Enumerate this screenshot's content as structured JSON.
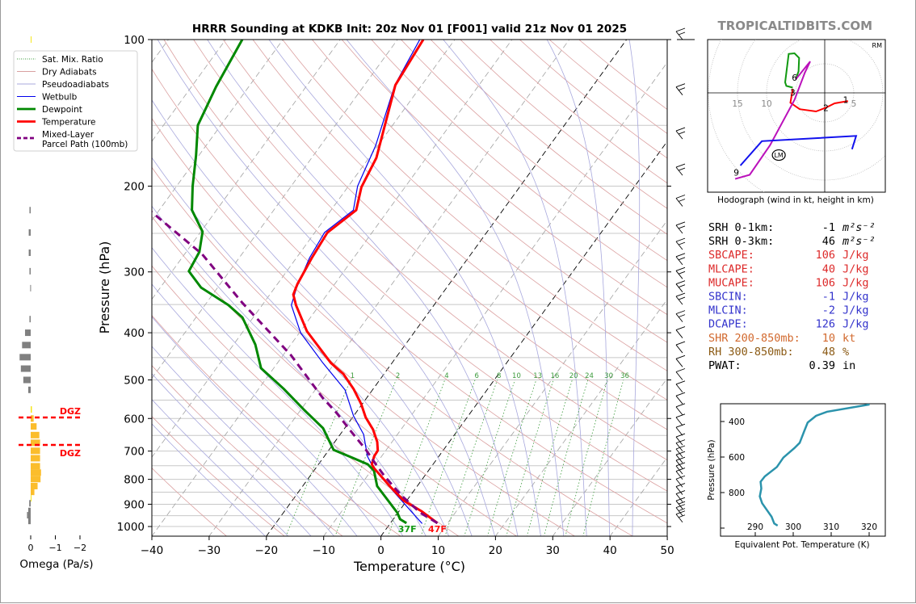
{
  "title": "HRRR Sounding at KDKB Init: 20z Nov 01 [F001] valid 21z Nov 01 2025",
  "watermark": "TROPICALTIDBITS.COM",
  "legend": [
    {
      "label": "Sat. Mix. Ratio",
      "color": "#3a9a3a",
      "style": "dotted"
    },
    {
      "label": "Dry Adiabats",
      "color": "#d9a0a0",
      "style": "solid"
    },
    {
      "label": "Pseudoadiabats",
      "color": "#a8a8dd",
      "style": "solid"
    },
    {
      "label": "Wetbulb",
      "color": "#0000ee",
      "style": "solid"
    },
    {
      "label": "Dewpoint",
      "color": "#008800",
      "style": "thick"
    },
    {
      "label": "Temperature",
      "color": "#ff0000",
      "style": "thick"
    },
    {
      "label": "Mixed-Layer",
      "label2": "Parcel Path (100mb)",
      "color": "#800080",
      "style": "dashed"
    }
  ],
  "stats": [
    {
      "label": "SRH 0-1km:",
      "value": "-1",
      "unit": "m²s⁻²",
      "color": "#000000"
    },
    {
      "label": "SRH 0-3km:",
      "value": "46",
      "unit": "m²s⁻²",
      "color": "#000000"
    },
    {
      "label": "SBCAPE:",
      "value": "106",
      "unit": "J/kg",
      "color": "#dd2a2a"
    },
    {
      "label": "MLCAPE:",
      "value": "40",
      "unit": "J/kg",
      "color": "#dd2a2a"
    },
    {
      "label": "MUCAPE:",
      "value": "106",
      "unit": "J/kg",
      "color": "#dd2a2a"
    },
    {
      "label": "SBCIN:",
      "value": "-1",
      "unit": "J/kg",
      "color": "#3333cc"
    },
    {
      "label": "MLCIN:",
      "value": "-2",
      "unit": "J/kg",
      "color": "#3333cc"
    },
    {
      "label": "DCAPE:",
      "value": "126",
      "unit": "J/kg",
      "color": "#3333cc"
    },
    {
      "label": "SHR 200-850mb:",
      "value": "10",
      "unit": "kt",
      "color": "#d2692e"
    },
    {
      "label": "RH 300-850mb:",
      "value": "48",
      "unit": "%",
      "color": "#8b5a14"
    },
    {
      "label": "PWAT:",
      "value": "0.39",
      "unit": "in",
      "color": "#000000"
    }
  ],
  "chart_data": [
    {
      "type": "line",
      "name": "skew-t",
      "xlabel": "Temperature (°C)",
      "ylabel": "Pressure (hPa)",
      "xlim": [
        -40,
        50
      ],
      "ylim": [
        1050,
        100
      ],
      "y_scale": "log",
      "grid": true,
      "legend_placement": "left",
      "x_ticks": [
        "−40",
        "−30",
        "−20",
        "−10",
        "0",
        "10",
        "20",
        "30",
        "40",
        "50"
      ],
      "x_tick_values": [
        -40,
        -30,
        -20,
        -10,
        0,
        10,
        20,
        30,
        40,
        50
      ],
      "y_ticks": [
        "100",
        "200",
        "300",
        "400",
        "500",
        "600",
        "700",
        "800",
        "900",
        "1000"
      ],
      "y_tick_values": [
        100,
        200,
        300,
        400,
        500,
        600,
        700,
        800,
        900,
        1000
      ],
      "mixing_ratio_labels": [
        "1",
        "2",
        "4",
        "6",
        "8",
        "10",
        "13",
        "16",
        "20",
        "24",
        "30",
        "36"
      ],
      "surface_temperature_label": "47F",
      "surface_dewpoint_label": "37F",
      "series": {
        "temperature": [
          [
            984,
            8.2
          ],
          [
            930,
            3.9
          ],
          [
            885,
            -0.5
          ],
          [
            829,
            -4.6
          ],
          [
            759,
            -9.8
          ],
          [
            745,
            -10.7
          ],
          [
            717,
            -11.3
          ],
          [
            698,
            -11.4
          ],
          [
            670,
            -12.6
          ],
          [
            632,
            -14.9
          ],
          [
            597,
            -17.7
          ],
          [
            560,
            -20.2
          ],
          [
            522,
            -23.4
          ],
          [
            486,
            -27.1
          ],
          [
            462,
            -30.6
          ],
          [
            397,
            -38.9
          ],
          [
            351,
            -44.1
          ],
          [
            334,
            -45.9
          ],
          [
            318,
            -46.5
          ],
          [
            281,
            -47.3
          ],
          [
            249,
            -47.8
          ],
          [
            224,
            -45.6
          ],
          [
            201,
            -47.6
          ],
          [
            175,
            -48.7
          ],
          [
            124,
            -54.6
          ],
          [
            100,
            -55.5
          ]
        ],
        "dewpoint": [
          [
            984,
            2.8
          ],
          [
            966,
            1.2
          ],
          [
            937,
            -0.1
          ],
          [
            826,
            -7.0
          ],
          [
            768,
            -9.5
          ],
          [
            745,
            -11.4
          ],
          [
            723,
            -14.8
          ],
          [
            696,
            -19.2
          ],
          [
            628,
            -23.8
          ],
          [
            577,
            -29.3
          ],
          [
            521,
            -35.7
          ],
          [
            473,
            -42.2
          ],
          [
            423,
            -46.2
          ],
          [
            372,
            -51.9
          ],
          [
            351,
            -55.9
          ],
          [
            323,
            -62.9
          ],
          [
            299,
            -67.1
          ],
          [
            273,
            -67.7
          ],
          [
            248,
            -69.7
          ],
          [
            224,
            -74.3
          ],
          [
            200,
            -77.2
          ],
          [
            173,
            -80.5
          ],
          [
            150,
            -84.0
          ],
          [
            125,
            -85.7
          ],
          [
            100,
            -87.1
          ]
        ],
        "wetbulb": [
          [
            986,
            5.6
          ],
          [
            895,
            -0.2
          ],
          [
            820,
            -5.4
          ],
          [
            754,
            -10.2
          ],
          [
            717,
            -12.5
          ],
          [
            647,
            -15.9
          ],
          [
            593,
            -20.0
          ],
          [
            524,
            -24.8
          ],
          [
            462,
            -32.0
          ],
          [
            400,
            -39.8
          ],
          [
            351,
            -44.9
          ],
          [
            323,
            -46.2
          ],
          [
            281,
            -47.7
          ],
          [
            249,
            -48.3
          ],
          [
            224,
            -46.1
          ],
          [
            200,
            -48.4
          ],
          [
            165,
            -50.4
          ],
          [
            124,
            -54.7
          ],
          [
            100,
            -56.1
          ]
        ],
        "parcel": [
          [
            984,
            8.2
          ],
          [
            937,
            3.9
          ],
          [
            863,
            -1.6
          ],
          [
            789,
            -6.9
          ],
          [
            745,
            -10.0
          ],
          [
            695,
            -13.6
          ],
          [
            632,
            -19.0
          ],
          [
            585,
            -23.3
          ],
          [
            545,
            -27.6
          ],
          [
            445,
            -38.6
          ],
          [
            347,
            -53.8
          ],
          [
            276,
            -66.9
          ],
          [
            226,
            -81.1
          ]
        ]
      }
    },
    {
      "type": "bar",
      "name": "omega",
      "xlabel": "Omega (Pa/s)",
      "x_ticks": [
        "0",
        "−1",
        "−2"
      ],
      "x_tick_values": [
        0,
        -1,
        -2
      ],
      "dgz_label": "DGZ",
      "dgz_pressures": [
        597,
        680
      ],
      "pressures": [
        100,
        224,
        249,
        274,
        299,
        324,
        375,
        400,
        424,
        449,
        474,
        500,
        524,
        575,
        600,
        623,
        649,
        673,
        699,
        724,
        752,
        775,
        799,
        826,
        849,
        875,
        896,
        929,
        948,
        974
      ],
      "values": [
        -0.02,
        0.05,
        0.08,
        0.08,
        0.05,
        0.02,
        0.05,
        0.23,
        0.35,
        0.45,
        0.4,
        0.3,
        0.1,
        -0.05,
        -0.12,
        -0.24,
        -0.35,
        -0.38,
        -0.38,
        -0.38,
        -0.38,
        -0.42,
        -0.4,
        -0.28,
        -0.15,
        -0.03,
        0.06,
        0.1,
        0.15,
        0.1
      ]
    },
    {
      "type": "line",
      "name": "hodograph",
      "caption": "Hodograph (wind in kt, height in km)",
      "ring_labels": [
        "5",
        "10",
        "15"
      ],
      "ring_values": [
        5,
        10,
        15,
        20
      ],
      "height_labels": [
        {
          "text": "1",
          "u": 3.6,
          "v": -1.2
        },
        {
          "text": "2",
          "u": 0.2,
          "v": -2.6
        },
        {
          "text": "3",
          "u": -5.5,
          "v": 0.5
        },
        {
          "text": "6",
          "u": -5.2,
          "v": 2.1
        },
        {
          "text": "9",
          "u": -15.2,
          "v": -13.7
        }
      ],
      "lm_label": "LM",
      "lm": [
        -7.9,
        -10.7
      ],
      "rm_label": "RM",
      "rm": [
        6.1,
        11.1
      ],
      "series": [
        {
          "layer": "0-3 km",
          "color": "#ff0000",
          "uv": [
            [
              4.0,
              -1.4
            ],
            [
              1.7,
              -1.8
            ],
            [
              0.3,
              -2.5
            ],
            [
              -1.5,
              -3.2
            ],
            [
              -4.3,
              -2.8
            ],
            [
              -5.9,
              -1.7
            ],
            [
              -5.7,
              -0.5
            ],
            [
              -5.5,
              0.7
            ]
          ]
        },
        {
          "layer": "3-6 km",
          "color": "#119911",
          "uv": [
            [
              -5.5,
              0.9
            ],
            [
              -6.6,
              1.2
            ],
            [
              -6.8,
              1.8
            ],
            [
              -6.2,
              6.7
            ],
            [
              -5.2,
              6.8
            ],
            [
              -4.4,
              6.0
            ],
            [
              -4.5,
              3.7
            ],
            [
              -5.0,
              2.3
            ]
          ]
        },
        {
          "layer": "6-9 km",
          "color": "#bb11bb",
          "uv": [
            [
              -5.0,
              2.3
            ],
            [
              -2.5,
              5.4
            ],
            [
              -3.4,
              3.5
            ],
            [
              -5.2,
              -1.2
            ],
            [
              -9.4,
              -9.0
            ],
            [
              -12.9,
              -14.1
            ],
            [
              -15.4,
              -14.8
            ]
          ]
        },
        {
          "layer": "9-12 km",
          "color": "#1111ee",
          "uv": [
            [
              -14.5,
              -12.5
            ],
            [
              -10.8,
              -8.3
            ],
            [
              5.4,
              -7.4
            ],
            [
              4.7,
              -9.7
            ]
          ]
        }
      ]
    },
    {
      "type": "line",
      "name": "equivalent-potential-temperature",
      "xlabel": "Equivalent Pot. Temperature (K)",
      "ylabel": "Pressure (hPa)",
      "x_ticks": [
        "290",
        "300",
        "310",
        "320"
      ],
      "x_tick_values": [
        290,
        300,
        310,
        320
      ],
      "y_ticks": [
        "400",
        "600",
        "800"
      ],
      "y_tick_values": [
        400,
        600,
        800
      ],
      "color": "#2b93ac",
      "points": [
        [
          304,
          320.1
        ],
        [
          345,
          308.9
        ],
        [
          368,
          306.0
        ],
        [
          406,
          303.8
        ],
        [
          459,
          302.8
        ],
        [
          520,
          301.7
        ],
        [
          550,
          300.3
        ],
        [
          603,
          297.4
        ],
        [
          656,
          295.7
        ],
        [
          709,
          292.5
        ],
        [
          739,
          291.4
        ],
        [
          777,
          291.6
        ],
        [
          822,
          291.2
        ],
        [
          860,
          291.8
        ],
        [
          936,
          294.3
        ],
        [
          974,
          295.0
        ],
        [
          986,
          295.9
        ]
      ]
    }
  ]
}
